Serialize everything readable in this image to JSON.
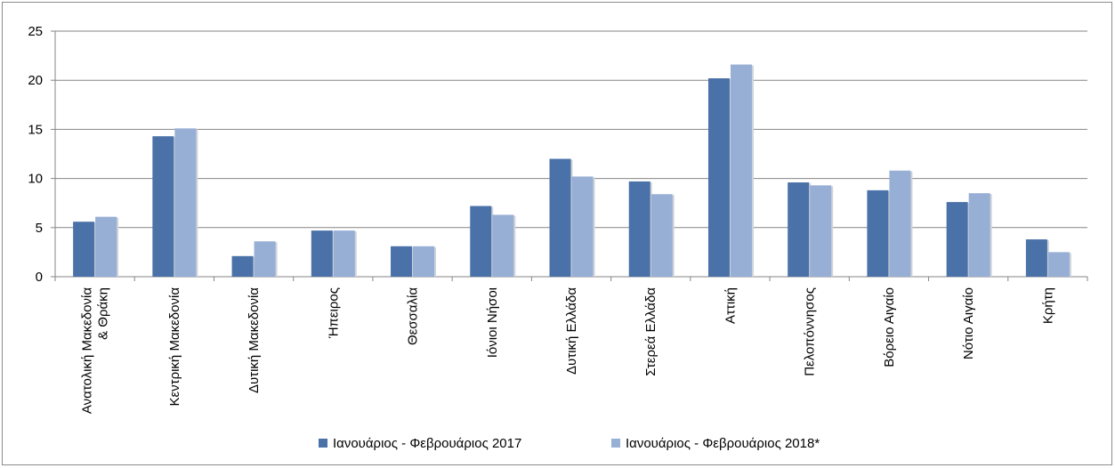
{
  "chart_data": {
    "type": "bar",
    "title": "",
    "xlabel": "",
    "ylabel": "",
    "ylim": [
      0,
      25
    ],
    "yticks": [
      0,
      5,
      10,
      15,
      20,
      25
    ],
    "grid": true,
    "legend_position": "bottom",
    "categories": [
      [
        "Ανατολική Μακεδονία",
        "& Θράκη"
      ],
      [
        "Κεντρική Μακεδονία"
      ],
      [
        "Δυτική Μακεδονία"
      ],
      [
        "Ήπειρος"
      ],
      [
        "Θεσσαλία"
      ],
      [
        "Ιόνιοι Νήσοι"
      ],
      [
        "Δυτική Ελλάδα"
      ],
      [
        "Στερεά Ελλάδα"
      ],
      [
        "Αττική"
      ],
      [
        "Πελοπόννησος"
      ],
      [
        "Βόρειο Αιγαίο"
      ],
      [
        "Νότιο Αιγαίο"
      ],
      [
        "Κρήτη"
      ]
    ],
    "series": [
      {
        "name": "Ιανουάριος - Φεβρουάριος 2017",
        "color": "#4a72a8",
        "values": [
          5.6,
          14.3,
          2.1,
          4.7,
          3.1,
          7.2,
          12.0,
          9.7,
          20.2,
          9.6,
          8.8,
          7.6,
          3.8
        ]
      },
      {
        "name": "Ιανουάριος - Φεβρουάριος 2018*",
        "color": "#97aed5",
        "values": [
          6.1,
          15.1,
          3.6,
          4.7,
          3.1,
          6.3,
          10.2,
          8.4,
          21.6,
          9.3,
          10.8,
          8.5,
          2.5
        ]
      }
    ]
  }
}
